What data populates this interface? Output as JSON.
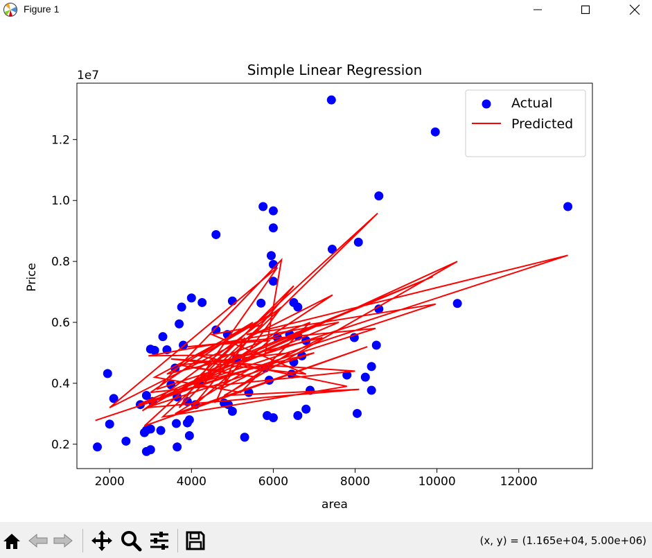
{
  "window": {
    "title": "Figure 1",
    "icons": [
      "matplotlib-icon",
      "minimize-icon",
      "maximize-icon",
      "close-icon"
    ]
  },
  "toolbar": {
    "buttons": [
      "home-icon",
      "back-icon",
      "forward-icon",
      "pan-icon",
      "zoom-icon",
      "configure-subplots-icon",
      "save-icon"
    ],
    "coords": "(x, y) = (1.165e+04, 5.00e+06)"
  },
  "chart_data": {
    "type": "scatter",
    "title": "Simple Linear Regression",
    "xlabel": "area",
    "ylabel": "Price",
    "offset_text": "1e7",
    "xlim": [
      1200,
      13800
    ],
    "ylim": [
      1.2,
      13.85
    ],
    "y_unit": "1e6",
    "xticks": [
      2000,
      4000,
      6000,
      8000,
      10000,
      12000
    ],
    "xtick_labels": [
      "2000",
      "4000",
      "6000",
      "8000",
      "10000",
      "12000"
    ],
    "yticks": [
      2,
      4,
      6,
      8,
      10,
      12
    ],
    "ytick_labels": [
      "0.2",
      "0.4",
      "0.6",
      "0.8",
      "1.0",
      "1.2"
    ],
    "grid": false,
    "legend": {
      "placement": "top-right",
      "entries": [
        "Actual",
        "Predicted"
      ]
    },
    "colors": {
      "actual": "#0000ff",
      "predicted": "#ff0000"
    },
    "series": [
      {
        "name": "Actual",
        "kind": "scatter",
        "points": [
          [
            7420,
            13.3
          ],
          [
            9960,
            12.25
          ],
          [
            8580,
            10.15
          ],
          [
            13200,
            9.8
          ],
          [
            5750,
            9.8
          ],
          [
            6000,
            9.66
          ],
          [
            6000,
            9.1
          ],
          [
            4600,
            8.88
          ],
          [
            5950,
            8.19
          ],
          [
            6000,
            7.9
          ],
          [
            7440,
            8.4
          ],
          [
            8080,
            8.63
          ],
          [
            6000,
            7.35
          ],
          [
            10500,
            6.62
          ],
          [
            4000,
            6.8
          ],
          [
            4260,
            6.65
          ],
          [
            3760,
            6.5
          ],
          [
            5000,
            6.7
          ],
          [
            8580,
            6.44
          ],
          [
            5700,
            6.63
          ],
          [
            6500,
            6.65
          ],
          [
            6600,
            6.5
          ],
          [
            3700,
            5.95
          ],
          [
            3300,
            5.53
          ],
          [
            7980,
            5.5
          ],
          [
            8520,
            5.25
          ],
          [
            6400,
            5.6
          ],
          [
            6600,
            5.55
          ],
          [
            6800,
            5.4
          ],
          [
            6100,
            5.5
          ],
          [
            4880,
            5.6
          ],
          [
            3800,
            5.25
          ],
          [
            3400,
            5.1
          ],
          [
            3000,
            5.12
          ],
          [
            3100,
            5.08
          ],
          [
            4600,
            5.75
          ],
          [
            6700,
            4.9
          ],
          [
            6500,
            4.7
          ],
          [
            8400,
            4.55
          ],
          [
            3600,
            4.5
          ],
          [
            5100,
            4.8
          ],
          [
            5800,
            4.5
          ],
          [
            1950,
            4.32
          ],
          [
            7800,
            4.27
          ],
          [
            8250,
            4.2
          ],
          [
            6450,
            4.3
          ],
          [
            5900,
            4.1
          ],
          [
            4200,
            4.0
          ],
          [
            3500,
            3.95
          ],
          [
            2900,
            3.6
          ],
          [
            2100,
            3.5
          ],
          [
            2750,
            3.3
          ],
          [
            3050,
            3.4
          ],
          [
            4800,
            3.35
          ],
          [
            6900,
            3.77
          ],
          [
            8400,
            3.77
          ],
          [
            5400,
            3.7
          ],
          [
            3650,
            3.55
          ],
          [
            3900,
            3.4
          ],
          [
            4100,
            3.3
          ],
          [
            4900,
            3.3
          ],
          [
            6800,
            3.15
          ],
          [
            5000,
            3.08
          ],
          [
            8050,
            3.01
          ],
          [
            6600,
            2.94
          ],
          [
            5850,
            2.94
          ],
          [
            6000,
            2.87
          ],
          [
            3950,
            2.8
          ],
          [
            3900,
            2.7
          ],
          [
            3630,
            2.68
          ],
          [
            2000,
            2.66
          ],
          [
            3000,
            2.5
          ],
          [
            2900,
            2.46
          ],
          [
            2850,
            2.38
          ],
          [
            3250,
            2.45
          ],
          [
            3950,
            2.28
          ],
          [
            5300,
            2.23
          ],
          [
            2400,
            2.1
          ],
          [
            3650,
            1.91
          ],
          [
            1700,
            1.91
          ],
          [
            3000,
            1.82
          ],
          [
            2900,
            1.76
          ]
        ]
      },
      {
        "name": "Predicted",
        "kind": "line",
        "points": [
          [
            1650,
            2.78
          ],
          [
            5400,
            4.45
          ],
          [
            3600,
            3.0
          ],
          [
            8300,
            5.2
          ],
          [
            2850,
            2.6
          ],
          [
            8550,
            9.58
          ],
          [
            3700,
            3.2
          ],
          [
            6100,
            7.8
          ],
          [
            2000,
            3.2
          ],
          [
            7450,
            6.9
          ],
          [
            4300,
            4.1
          ],
          [
            9970,
            6.6
          ],
          [
            5350,
            5.6
          ],
          [
            13200,
            8.2
          ],
          [
            3150,
            3.8
          ],
          [
            6200,
            8.05
          ],
          [
            5800,
            4.95
          ],
          [
            2950,
            4.9
          ],
          [
            7600,
            6.0
          ],
          [
            3200,
            3.5
          ],
          [
            10500,
            8.0
          ],
          [
            4800,
            3.6
          ],
          [
            8100,
            3.8
          ],
          [
            2900,
            3.2
          ],
          [
            7000,
            5.0
          ],
          [
            3800,
            3.9
          ],
          [
            6700,
            5.6
          ],
          [
            2700,
            3.3
          ],
          [
            8500,
            5.8
          ],
          [
            3900,
            5.2
          ],
          [
            5900,
            5.4
          ],
          [
            4000,
            3.2
          ],
          [
            6500,
            7.2
          ],
          [
            4400,
            4.4
          ],
          [
            9900,
            7.5
          ],
          [
            5000,
            4.8
          ],
          [
            2800,
            3.1
          ],
          [
            6200,
            6.5
          ],
          [
            4700,
            3.8
          ],
          [
            7200,
            5.5
          ],
          [
            3400,
            4.3
          ],
          [
            5500,
            6.0
          ],
          [
            3000,
            3.7
          ],
          [
            8000,
            4.4
          ],
          [
            3500,
            4.8
          ],
          [
            6800,
            4.3
          ],
          [
            4500,
            5.6
          ],
          [
            5700,
            5.9
          ],
          [
            3300,
            2.9
          ],
          [
            7800,
            3.9
          ],
          [
            4200,
            4.9
          ],
          [
            6000,
            6.3
          ],
          [
            3100,
            4.2
          ],
          [
            5200,
            3.7
          ],
          [
            6900,
            6.0
          ],
          [
            4100,
            4.5
          ],
          [
            5600,
            4.2
          ],
          [
            3700,
            4.6
          ],
          [
            6400,
            5.0
          ],
          [
            4600,
            3.4
          ],
          [
            5300,
            5.5
          ]
        ]
      }
    ]
  }
}
